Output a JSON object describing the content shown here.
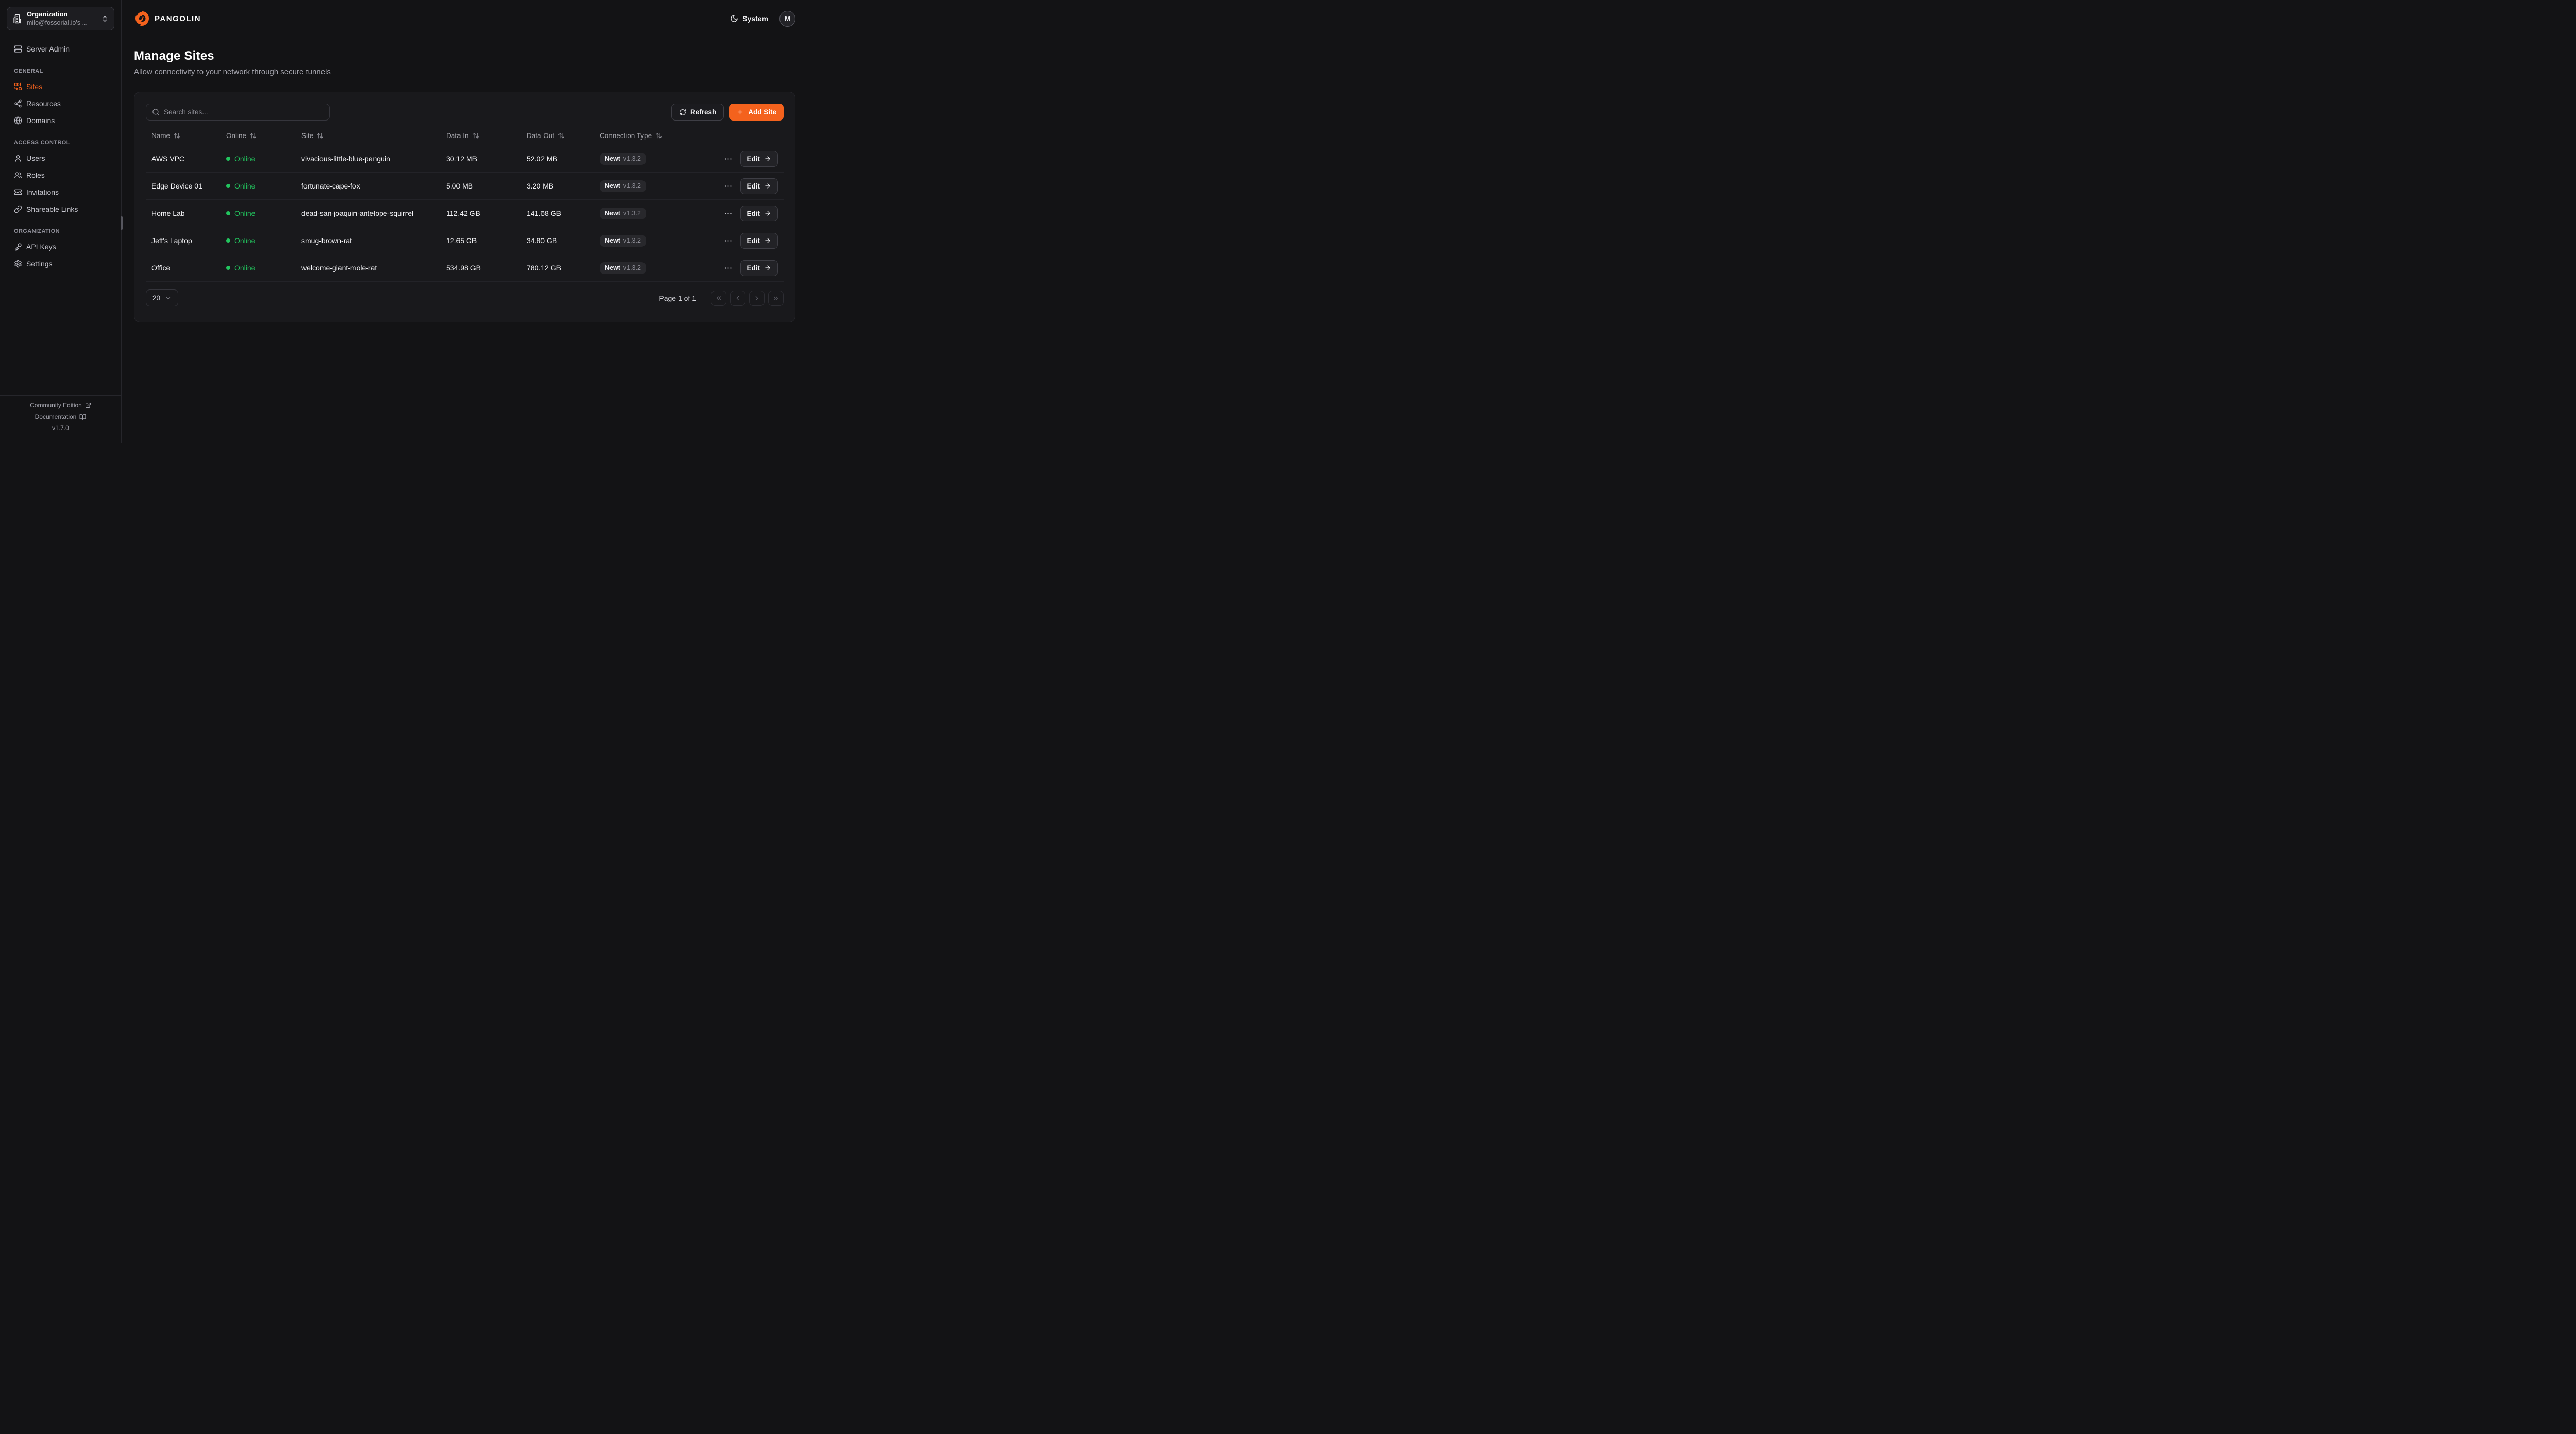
{
  "org_switcher": {
    "label": "Organization",
    "value": "milo@fossorial.io's ..."
  },
  "sidebar": {
    "server_admin": {
      "label": "Server Admin",
      "icon": "server-icon"
    },
    "sections": [
      {
        "label": "GENERAL",
        "items": [
          {
            "label": "Sites",
            "icon": "sites-icon",
            "active": true
          },
          {
            "label": "Resources",
            "icon": "resources-icon",
            "active": false
          },
          {
            "label": "Domains",
            "icon": "globe-icon",
            "active": false
          }
        ]
      },
      {
        "label": "ACCESS CONTROL",
        "items": [
          {
            "label": "Users",
            "icon": "user-icon",
            "active": false
          },
          {
            "label": "Roles",
            "icon": "users-icon",
            "active": false
          },
          {
            "label": "Invitations",
            "icon": "ticket-check-icon",
            "active": false
          },
          {
            "label": "Shareable Links",
            "icon": "link-icon",
            "active": false
          }
        ]
      },
      {
        "label": "ORGANIZATION",
        "items": [
          {
            "label": "API Keys",
            "icon": "key-icon",
            "active": false
          },
          {
            "label": "Settings",
            "icon": "gear-icon",
            "active": false
          }
        ]
      }
    ],
    "footer": {
      "community": "Community Edition",
      "documentation": "Documentation",
      "version": "v1.7.0"
    }
  },
  "topbar": {
    "brand": "PANGOLIN",
    "theme_label": "System",
    "avatar_initial": "M"
  },
  "page": {
    "title": "Manage Sites",
    "subtitle": "Allow connectivity to your network through secure tunnels"
  },
  "toolbar": {
    "search_placeholder": "Search sites...",
    "refresh_label": "Refresh",
    "add_site_label": "Add Site"
  },
  "table": {
    "columns": [
      "Name",
      "Online",
      "Site",
      "Data In",
      "Data Out",
      "Connection Type"
    ],
    "edit_label": "Edit",
    "rows": [
      {
        "name": "AWS VPC",
        "status": "Online",
        "site": "vivacious-little-blue-penguin",
        "data_in": "30.12 MB",
        "data_out": "52.02 MB",
        "client": "Newt",
        "version": "v1.3.2"
      },
      {
        "name": "Edge Device 01",
        "status": "Online",
        "site": "fortunate-cape-fox",
        "data_in": "5.00 MB",
        "data_out": "3.20 MB",
        "client": "Newt",
        "version": "v1.3.2"
      },
      {
        "name": "Home Lab",
        "status": "Online",
        "site": "dead-san-joaquin-antelope-squirrel",
        "data_in": "112.42 GB",
        "data_out": "141.68 GB",
        "client": "Newt",
        "version": "v1.3.2"
      },
      {
        "name": "Jeff's Laptop",
        "status": "Online",
        "site": "smug-brown-rat",
        "data_in": "12.65 GB",
        "data_out": "34.80 GB",
        "client": "Newt",
        "version": "v1.3.2"
      },
      {
        "name": "Office",
        "status": "Online",
        "site": "welcome-giant-mole-rat",
        "data_in": "534.98 GB",
        "data_out": "780.12 GB",
        "client": "Newt",
        "version": "v1.3.2"
      }
    ]
  },
  "pagination": {
    "page_size": "20",
    "status": "Page 1 of 1"
  },
  "colors": {
    "accent": "#f4621d",
    "online_green": "#22c55e"
  }
}
